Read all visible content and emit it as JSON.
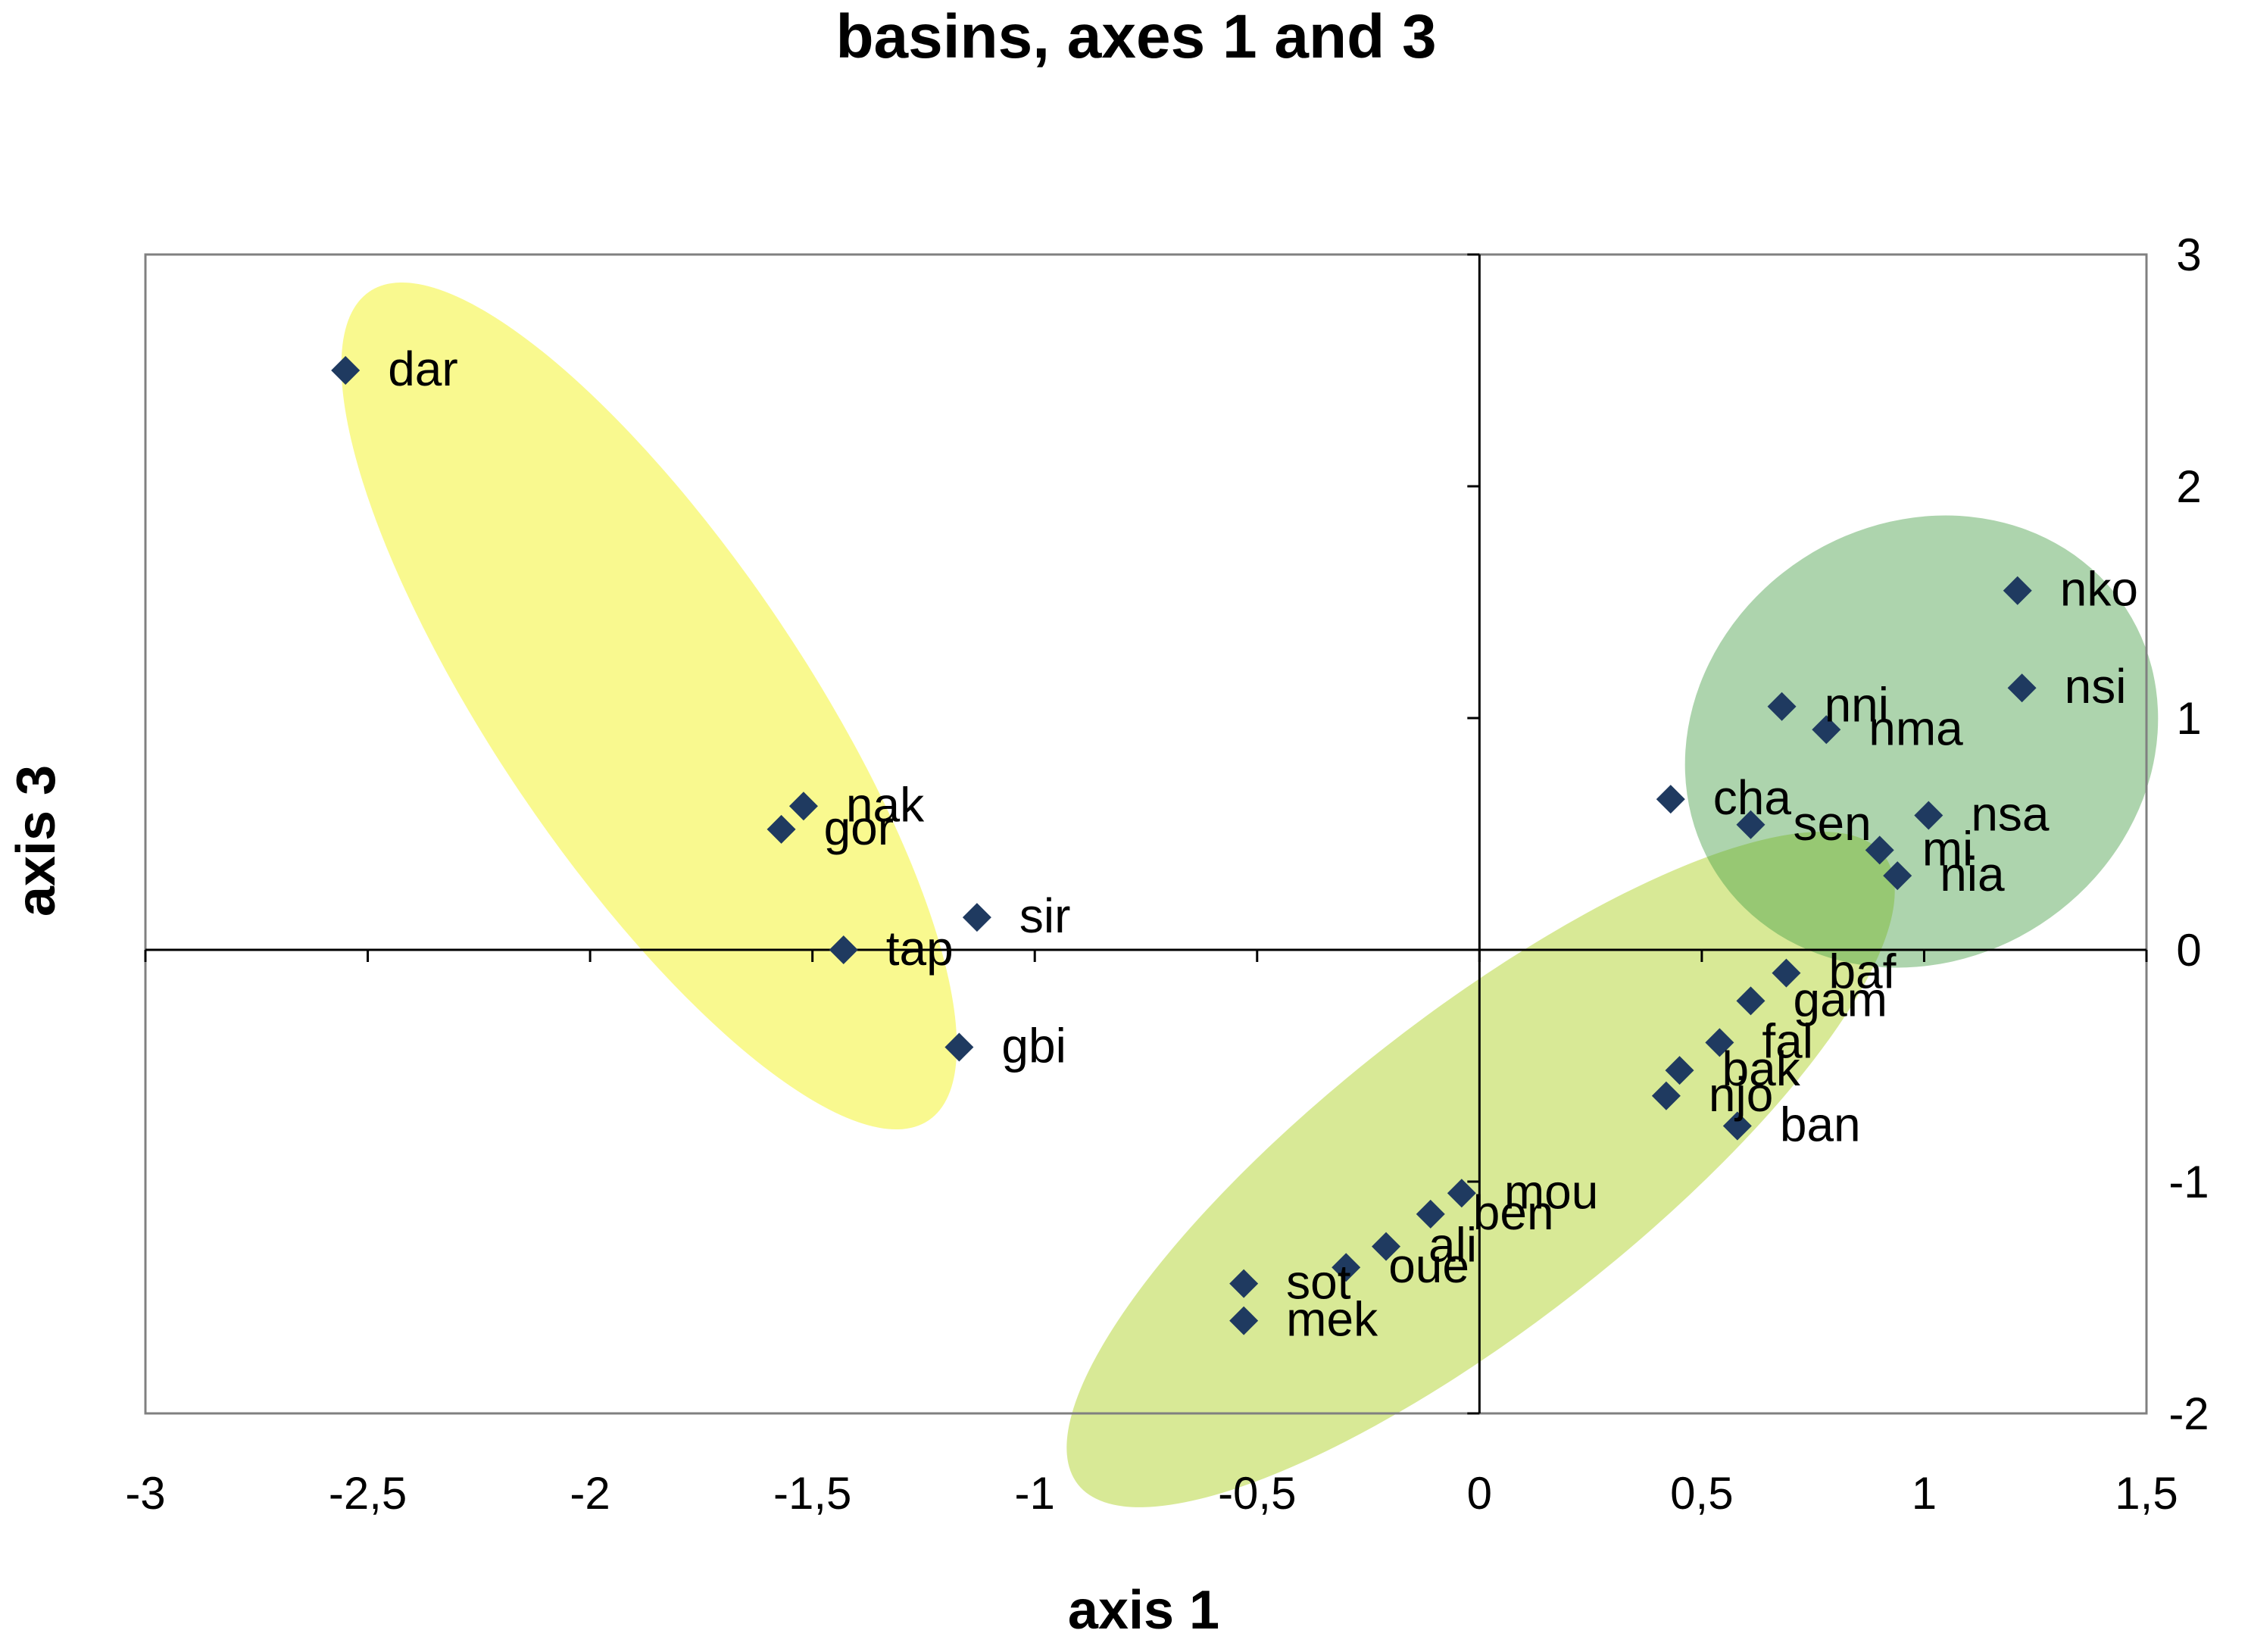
{
  "chart_data": {
    "type": "scatter",
    "title": "basins, axes 1 and 3",
    "xlabel": "axis 1",
    "ylabel": "axis 3",
    "xlim": [
      -3,
      1.5
    ],
    "ylim": [
      -2,
      3
    ],
    "xticks": [
      -3,
      -2.5,
      -2,
      -1.5,
      -1,
      -0.5,
      0,
      0.5,
      1,
      1.5
    ],
    "yticks": [
      -2,
      -1,
      0,
      1,
      2,
      3
    ],
    "tick_decimal_separator": ",",
    "grid": false,
    "legend": "none",
    "marker": "diamond",
    "point_color": "#1f3a60",
    "clusters": [
      {
        "color": "#f7f76a",
        "opacity": 0.75,
        "members": [
          "dar",
          "nak",
          "gor",
          "sir",
          "tap",
          "gbi"
        ]
      },
      {
        "color": "#c8df6a",
        "opacity": 0.7,
        "members": [
          "baf",
          "gam",
          "fal",
          "bak",
          "njo",
          "ban",
          "mou",
          "ben",
          "ali",
          "oue",
          "sot",
          "mek"
        ]
      },
      {
        "color": "#4aa04a",
        "opacity": 0.45,
        "members": [
          "nko",
          "nsi",
          "nni",
          "nma",
          "cha",
          "sen",
          "nsa",
          "mi",
          "nia"
        ]
      }
    ],
    "points": [
      {
        "label": "dar",
        "x": -2.55,
        "y": 2.5
      },
      {
        "label": "nak",
        "x": -1.52,
        "y": 0.62
      },
      {
        "label": "gor",
        "x": -1.57,
        "y": 0.52
      },
      {
        "label": "sir",
        "x": -1.13,
        "y": 0.14
      },
      {
        "label": "tap",
        "x": -1.43,
        "y": 0.0
      },
      {
        "label": "gbi",
        "x": -1.17,
        "y": -0.42
      },
      {
        "label": "nko",
        "x": 1.21,
        "y": 1.55
      },
      {
        "label": "nsi",
        "x": 1.22,
        "y": 1.13
      },
      {
        "label": "nni",
        "x": 0.68,
        "y": 1.05
      },
      {
        "label": "nma",
        "x": 0.78,
        "y": 0.95
      },
      {
        "label": "cha",
        "x": 0.43,
        "y": 0.65
      },
      {
        "label": "sen",
        "x": 0.61,
        "y": 0.54
      },
      {
        "label": "nsa",
        "x": 1.01,
        "y": 0.58
      },
      {
        "label": "mi",
        "x": 0.9,
        "y": 0.43
      },
      {
        "label": "nia",
        "x": 0.94,
        "y": 0.32
      },
      {
        "label": "baf",
        "x": 0.69,
        "y": -0.1
      },
      {
        "label": "gam",
        "x": 0.61,
        "y": -0.22
      },
      {
        "label": "fal",
        "x": 0.54,
        "y": -0.4
      },
      {
        "label": "bak",
        "x": 0.45,
        "y": -0.52
      },
      {
        "label": "njo",
        "x": 0.42,
        "y": -0.63
      },
      {
        "label": "ban",
        "x": 0.58,
        "y": -0.76
      },
      {
        "label": "mou",
        "x": -0.04,
        "y": -1.05
      },
      {
        "label": "ben",
        "x": -0.11,
        "y": -1.14
      },
      {
        "label": "ali",
        "x": -0.21,
        "y": -1.28
      },
      {
        "label": "oue",
        "x": -0.3,
        "y": -1.37
      },
      {
        "label": "sot",
        "x": -0.53,
        "y": -1.44
      },
      {
        "label": "mek",
        "x": -0.53,
        "y": -1.6
      }
    ]
  }
}
